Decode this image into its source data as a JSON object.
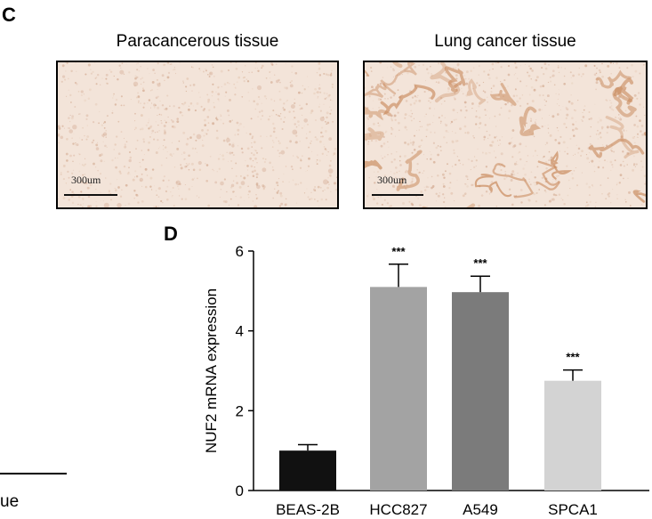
{
  "panel_c": {
    "letter": "C",
    "images": [
      {
        "title": "Paracancerous tissue",
        "scale_label": "300um",
        "stain": "light"
      },
      {
        "title": "Lung cancer tissue",
        "scale_label": "300um",
        "stain": "glandular"
      }
    ]
  },
  "panel_d": {
    "letter": "D"
  },
  "left_fragment": {
    "text": "ue"
  },
  "colors": {
    "tissue_bg": "#f3e4d9",
    "stain": "#c98a5d",
    "bar_black": "#111111",
    "bar_mid": "#a3a3a3",
    "bar_dark": "#7b7b7b",
    "bar_light": "#d3d3d3"
  },
  "chart_data": {
    "type": "bar",
    "ylabel": "NUF2 mRNA expression",
    "xlabel": "",
    "title": "",
    "ylim": [
      0,
      6
    ],
    "yticks": [
      0,
      2,
      4,
      6
    ],
    "categories": [
      "BEAS-2B",
      "HCC827",
      "A549",
      "SPCA1"
    ],
    "values": [
      1.0,
      5.1,
      4.97,
      2.75
    ],
    "errors": [
      0.15,
      0.57,
      0.4,
      0.27
    ],
    "annotations": [
      "",
      "***",
      "***",
      "***"
    ],
    "bar_colors": [
      "#111111",
      "#a3a3a3",
      "#7b7b7b",
      "#d3d3d3"
    ]
  }
}
